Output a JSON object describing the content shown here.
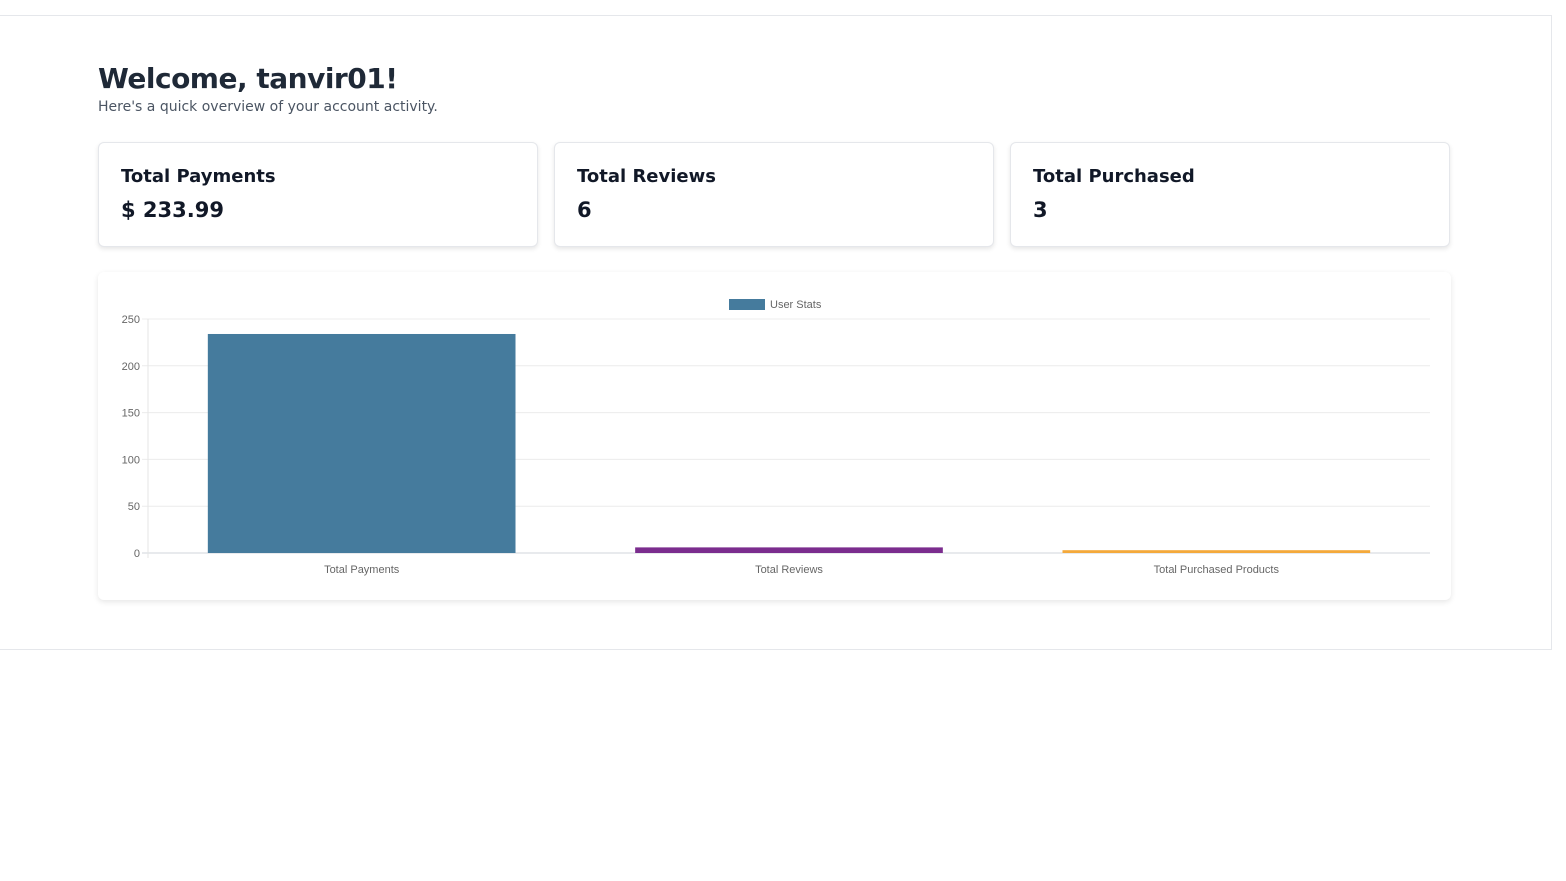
{
  "header": {
    "title": "Welcome, tanvir01!",
    "subtitle": "Here's a quick overview of your account activity."
  },
  "cards": [
    {
      "label": "Total Payments",
      "value": "$ 233.99"
    },
    {
      "label": "Total Reviews",
      "value": "6"
    },
    {
      "label": "Total Purchased",
      "value": "3"
    }
  ],
  "chart_data": {
    "type": "bar",
    "categories": [
      "Total Payments",
      "Total Reviews",
      "Total Purchased Products"
    ],
    "series": [
      {
        "name": "User Stats",
        "values": [
          233.99,
          6,
          3
        ]
      }
    ],
    "bar_colors": [
      "#457b9d",
      "#7b2d8e",
      "#f4a93b"
    ],
    "legend_color": "#457b9d",
    "ylim": [
      0,
      250
    ],
    "yticks": [
      0,
      50,
      100,
      150,
      200,
      250
    ],
    "grid": true,
    "legend_position": "top"
  }
}
